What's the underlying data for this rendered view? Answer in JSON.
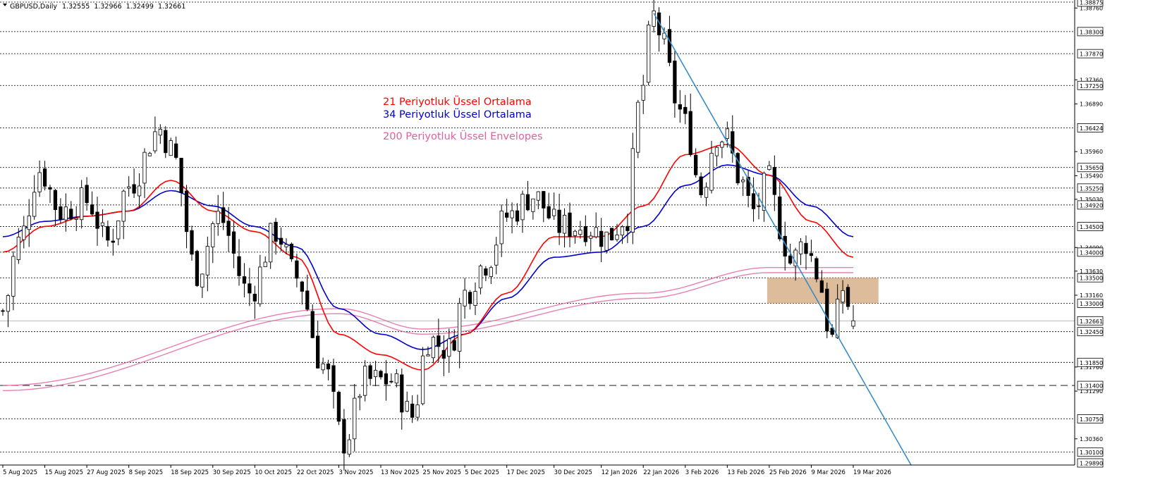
{
  "header": {
    "symbol": "GBPUSD,Daily",
    "open": "1.32555",
    "high": "1.32966",
    "low": "1.32499",
    "close": "1.32661"
  },
  "legend": {
    "ema21": "21 Periyotluk Üssel Ortalama",
    "ema34": "34 Periyotluk Üssel Ortalama",
    "env200": "200 Periyotluk Üssel Envelopes"
  },
  "colors": {
    "ema21": "#ff0000",
    "ema34": "#0000cc",
    "env200": "#e060a0",
    "trendline": "#3a8cc4",
    "zone": "#d2a679",
    "candle": "#000000",
    "grid": "#000000"
  },
  "chart_data": {
    "type": "candlestick",
    "ylim": [
      1.2989,
      1.38875
    ],
    "y_ticks": [
      1.3876,
      1.3736,
      1.3689,
      1.3596,
      1.3549,
      1.3503,
      1.3409,
      1.3363,
      1.3316,
      1.3176,
      1.3129,
      1.3036
    ],
    "level_labels": [
      1.38875,
      1.383,
      1.3787,
      1.3725,
      1.36424,
      1.3565,
      1.3525,
      1.3492,
      1.345,
      1.34,
      1.335,
      1.33,
      1.32661,
      1.3245,
      1.3185,
      1.314,
      1.3075,
      1.301,
      1.2989
    ],
    "dotted_levels": [
      1.38875,
      1.383,
      1.3787,
      1.3725,
      1.36424,
      1.3565,
      1.3525,
      1.3492,
      1.345,
      1.34,
      1.335,
      1.33,
      1.3245,
      1.3185,
      1.3075,
      1.301
    ],
    "dashed_level": 1.314,
    "current_price": 1.32661,
    "x_labels": [
      "5 Aug 2025",
      "15 Aug 2025",
      "27 Aug 2025",
      "8 Sep 2025",
      "18 Sep 2025",
      "30 Sep 2025",
      "10 Oct 2025",
      "22 Oct 2025",
      "3 Nov 2025",
      "13 Nov 2025",
      "25 Nov 2025",
      "5 Dec 2025",
      "17 Dec 2025",
      "30 Dec 2025",
      "12 Jan 2026",
      "22 Jan 2026",
      "3 Feb 2026",
      "13 Feb 2026",
      "25 Feb 2026",
      "9 Mar 2026",
      "19 Mar 2026"
    ],
    "close_anchors": [
      [
        "5 Aug 2025",
        1.3285
      ],
      [
        "8 Aug 2025",
        1.342
      ],
      [
        "14 Aug 2025",
        1.356
      ],
      [
        "20 Aug 2025",
        1.348
      ],
      [
        "27 Aug 2025",
        1.35
      ],
      [
        "2 Sep 2025",
        1.342
      ],
      [
        "8 Sep 2025",
        1.353
      ],
      [
        "16 Sep 2025",
        1.364
      ],
      [
        "18 Sep 2025",
        1.36
      ],
      [
        "25 Sep 2025",
        1.336
      ],
      [
        "1 Oct 2025",
        1.347
      ],
      [
        "9 Oct 2025",
        1.332
      ],
      [
        "16 Oct 2025",
        1.344
      ],
      [
        "22 Oct 2025",
        1.335
      ],
      [
        "29 Oct 2025",
        1.318
      ],
      [
        "4 Nov 2025",
        1.303
      ],
      [
        "10 Nov 2025",
        1.315
      ],
      [
        "17 Nov 2025",
        1.315
      ],
      [
        "21 Nov 2025",
        1.308
      ],
      [
        "26 Nov 2025",
        1.323
      ],
      [
        "2 Dec 2025",
        1.321
      ],
      [
        "5 Dec 2025",
        1.332
      ],
      [
        "11 Dec 2025",
        1.338
      ],
      [
        "17 Dec 2025",
        1.347
      ],
      [
        "24 Dec 2025",
        1.351
      ],
      [
        "31 Dec 2025",
        1.345
      ],
      [
        "7 Jan 2026",
        1.345
      ],
      [
        "13 Jan 2026",
        1.343
      ],
      [
        "19 Jan 2026",
        1.347
      ],
      [
        "21 Jan 2026",
        1.368
      ],
      [
        "26 Jan 2026",
        1.386
      ],
      [
        "28 Jan 2026",
        1.38
      ],
      [
        "30 Jan 2026",
        1.37
      ],
      [
        "3 Feb 2026",
        1.365
      ],
      [
        "6 Feb 2026",
        1.352
      ],
      [
        "11 Feb 2026",
        1.363
      ],
      [
        "13 Feb 2026",
        1.362
      ],
      [
        "17 Feb 2026",
        1.355
      ],
      [
        "20 Feb 2026",
        1.348
      ],
      [
        "25 Feb 2026",
        1.354
      ],
      [
        "27 Feb 2026",
        1.345
      ],
      [
        "3 Mar 2026",
        1.338
      ],
      [
        "6 Mar 2026",
        1.342
      ],
      [
        "10 Mar 2026",
        1.336
      ],
      [
        "13 Mar 2026",
        1.323
      ],
      [
        "17 Mar 2026",
        1.333
      ],
      [
        "19 Mar 2026",
        1.32661
      ]
    ],
    "ema21_anchors": [
      [
        "5 Aug 2025",
        1.34
      ],
      [
        "15 Aug 2025",
        1.345
      ],
      [
        "27 Aug 2025",
        1.347
      ],
      [
        "8 Sep 2025",
        1.348
      ],
      [
        "18 Sep 2025",
        1.354
      ],
      [
        "30 Sep 2025",
        1.348
      ],
      [
        "10 Oct 2025",
        1.344
      ],
      [
        "22 Oct 2025",
        1.339
      ],
      [
        "3 Nov 2025",
        1.324
      ],
      [
        "13 Nov 2025",
        1.32
      ],
      [
        "25 Nov 2025",
        1.317
      ],
      [
        "5 Dec 2025",
        1.324
      ],
      [
        "17 Dec 2025",
        1.332
      ],
      [
        "30 Dec 2025",
        1.343
      ],
      [
        "12 Jan 2026",
        1.343
      ],
      [
        "22 Jan 2026",
        1.349
      ],
      [
        "3 Feb 2026",
        1.359
      ],
      [
        "13 Feb 2026",
        1.361
      ],
      [
        "25 Feb 2026",
        1.355
      ],
      [
        "9 Mar 2026",
        1.346
      ],
      [
        "19 Mar 2026",
        1.339
      ]
    ],
    "ema34_anchors": [
      [
        "5 Aug 2025",
        1.343
      ],
      [
        "15 Aug 2025",
        1.346
      ],
      [
        "27 Aug 2025",
        1.347
      ],
      [
        "8 Sep 2025",
        1.348
      ],
      [
        "18 Sep 2025",
        1.352
      ],
      [
        "30 Sep 2025",
        1.349
      ],
      [
        "10 Oct 2025",
        1.345
      ],
      [
        "22 Oct 2025",
        1.341
      ],
      [
        "3 Nov 2025",
        1.329
      ],
      [
        "13 Nov 2025",
        1.324
      ],
      [
        "25 Nov 2025",
        1.321
      ],
      [
        "5 Dec 2025",
        1.324
      ],
      [
        "17 Dec 2025",
        1.331
      ],
      [
        "30 Dec 2025",
        1.339
      ],
      [
        "12 Jan 2026",
        1.34
      ],
      [
        "22 Jan 2026",
        1.345
      ],
      [
        "3 Feb 2026",
        1.353
      ],
      [
        "13 Feb 2026",
        1.357
      ],
      [
        "25 Feb 2026",
        1.355
      ],
      [
        "9 Mar 2026",
        1.349
      ],
      [
        "19 Mar 2026",
        1.343
      ]
    ],
    "env_upper_anchors": [
      [
        "5 Aug 2025",
        1.314
      ],
      [
        "3 Nov 2025",
        1.329
      ],
      [
        "25 Nov 2025",
        1.325
      ],
      [
        "22 Jan 2026",
        1.332
      ],
      [
        "25 Feb 2026",
        1.337
      ],
      [
        "19 Mar 2026",
        1.337
      ]
    ],
    "env_lower_anchors": [
      [
        "5 Aug 2025",
        1.313
      ],
      [
        "3 Nov 2025",
        1.328
      ],
      [
        "25 Nov 2025",
        1.324
      ],
      [
        "22 Jan 2026",
        1.331
      ],
      [
        "25 Feb 2026",
        1.336
      ],
      [
        "19 Mar 2026",
        1.336
      ]
    ],
    "trendline": [
      [
        "26 Jan 2026",
        1.3866
      ],
      [
        "5 Apr 2026",
        1.2985
      ]
    ],
    "zone": {
      "from": "25 Feb 2026",
      "to": "25 Mar 2026",
      "top": 1.335,
      "bottom": 1.33
    }
  }
}
